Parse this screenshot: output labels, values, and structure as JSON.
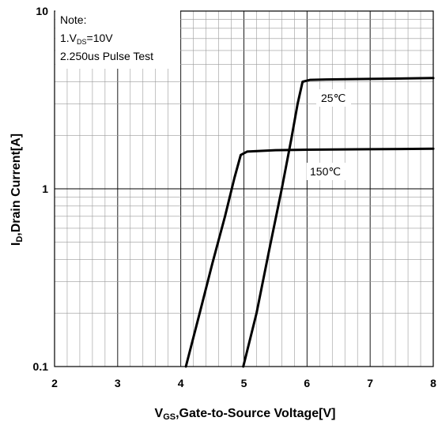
{
  "chart_data": {
    "type": "line",
    "xlabel": {
      "main": "V",
      "sub": "GS",
      "rest": ",Gate-to-Source Voltage[V]"
    },
    "ylabel": {
      "main": "I",
      "sub": "D",
      "rest": ",Drain Current[A]"
    },
    "xlim": [
      2,
      8
    ],
    "ylim": [
      0.1,
      10
    ],
    "yscale": "log",
    "grid": true,
    "x_ticks": [
      "2",
      "3",
      "4",
      "5",
      "6",
      "7",
      "8"
    ],
    "y_ticks": [
      "0.1",
      "1",
      "10"
    ],
    "note": {
      "line1": "Note:",
      "line2_main": "1.V",
      "line2_sub": "DS",
      "line2_rest": "=10V",
      "line3": "2.250us Pulse Test"
    },
    "series": [
      {
        "name": "25℃",
        "x": [
          4.99,
          5.2,
          5.4,
          5.6,
          5.75,
          5.85,
          5.93,
          6.05,
          6.3,
          7.0,
          8.0
        ],
        "y": [
          0.1,
          0.2,
          0.45,
          1.0,
          1.9,
          3.0,
          4.0,
          4.1,
          4.12,
          4.15,
          4.2
        ]
      },
      {
        "name": "150℃",
        "x": [
          4.08,
          4.3,
          4.5,
          4.7,
          4.85,
          4.95,
          5.05,
          5.5,
          6.0,
          7.0,
          8.0
        ],
        "y": [
          0.1,
          0.2,
          0.38,
          0.7,
          1.15,
          1.55,
          1.62,
          1.65,
          1.66,
          1.67,
          1.68
        ]
      }
    ]
  }
}
